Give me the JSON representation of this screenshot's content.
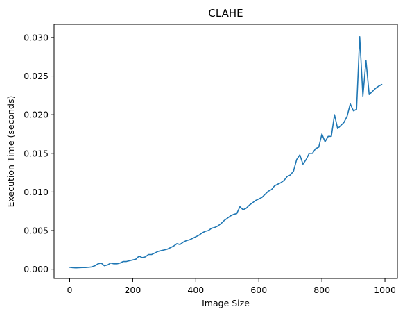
{
  "chart_data": {
    "type": "line",
    "title": "CLAHE",
    "xlabel": "Image Size",
    "ylabel": "Execution Time (seconds)",
    "xlim": [
      -49.5,
      1039.5
    ],
    "ylim": [
      -0.0012,
      0.0317
    ],
    "xticks": [
      0,
      200,
      400,
      600,
      800,
      1000
    ],
    "xtick_labels": [
      "0",
      "200",
      "400",
      "600",
      "800",
      "1000"
    ],
    "yticks": [
      0.0,
      0.005,
      0.01,
      0.015,
      0.02,
      0.025,
      0.03
    ],
    "ytick_labels": [
      "0.000",
      "0.005",
      "0.010",
      "0.015",
      "0.020",
      "0.025",
      "0.030"
    ],
    "grid": false,
    "line_color": "#1f77b4",
    "series": [
      {
        "x": [
          0,
          10,
          20,
          30,
          40,
          50,
          60,
          70,
          80,
          90,
          100,
          110,
          120,
          130,
          140,
          150,
          160,
          170,
          180,
          190,
          200,
          210,
          220,
          230,
          240,
          250,
          260,
          270,
          280,
          290,
          300,
          310,
          320,
          330,
          340,
          350,
          360,
          370,
          380,
          390,
          400,
          410,
          420,
          430,
          440,
          450,
          460,
          470,
          480,
          490,
          500,
          510,
          520,
          530,
          540,
          550,
          560,
          570,
          580,
          590,
          600,
          610,
          620,
          630,
          640,
          650,
          660,
          670,
          680,
          690,
          700,
          710,
          720,
          730,
          740,
          750,
          760,
          770,
          780,
          790,
          800,
          810,
          820,
          830,
          840,
          850,
          860,
          870,
          880,
          890,
          900,
          910,
          920,
          930,
          940,
          950,
          960,
          970,
          980,
          990
        ],
        "y": [
          0.00025,
          0.0002,
          0.00018,
          0.0002,
          0.00022,
          0.00022,
          0.00025,
          0.0003,
          0.00045,
          0.0007,
          0.0008,
          0.00045,
          0.00055,
          0.0008,
          0.0007,
          0.0007,
          0.0008,
          0.001,
          0.001,
          0.0011,
          0.0012,
          0.0013,
          0.0017,
          0.0015,
          0.0016,
          0.0019,
          0.0019,
          0.0021,
          0.0023,
          0.0024,
          0.0025,
          0.0026,
          0.0028,
          0.003,
          0.0033,
          0.0032,
          0.0035,
          0.0037,
          0.0038,
          0.004,
          0.0042,
          0.0044,
          0.0047,
          0.0049,
          0.005,
          0.0053,
          0.0054,
          0.0056,
          0.0059,
          0.0063,
          0.0066,
          0.0069,
          0.0071,
          0.0072,
          0.0081,
          0.0077,
          0.0079,
          0.0083,
          0.0086,
          0.0089,
          0.0091,
          0.0093,
          0.0097,
          0.0101,
          0.0103,
          0.0108,
          0.011,
          0.0112,
          0.0115,
          0.012,
          0.0122,
          0.0127,
          0.0142,
          0.0148,
          0.0136,
          0.0142,
          0.015,
          0.015,
          0.0156,
          0.0158,
          0.0175,
          0.0165,
          0.0172,
          0.0172,
          0.02,
          0.0182,
          0.0186,
          0.019,
          0.0198,
          0.0214,
          0.0205,
          0.0207,
          0.0301,
          0.0224,
          0.027,
          0.0226,
          0.023,
          0.0234,
          0.0237,
          0.0239
        ]
      }
    ]
  }
}
